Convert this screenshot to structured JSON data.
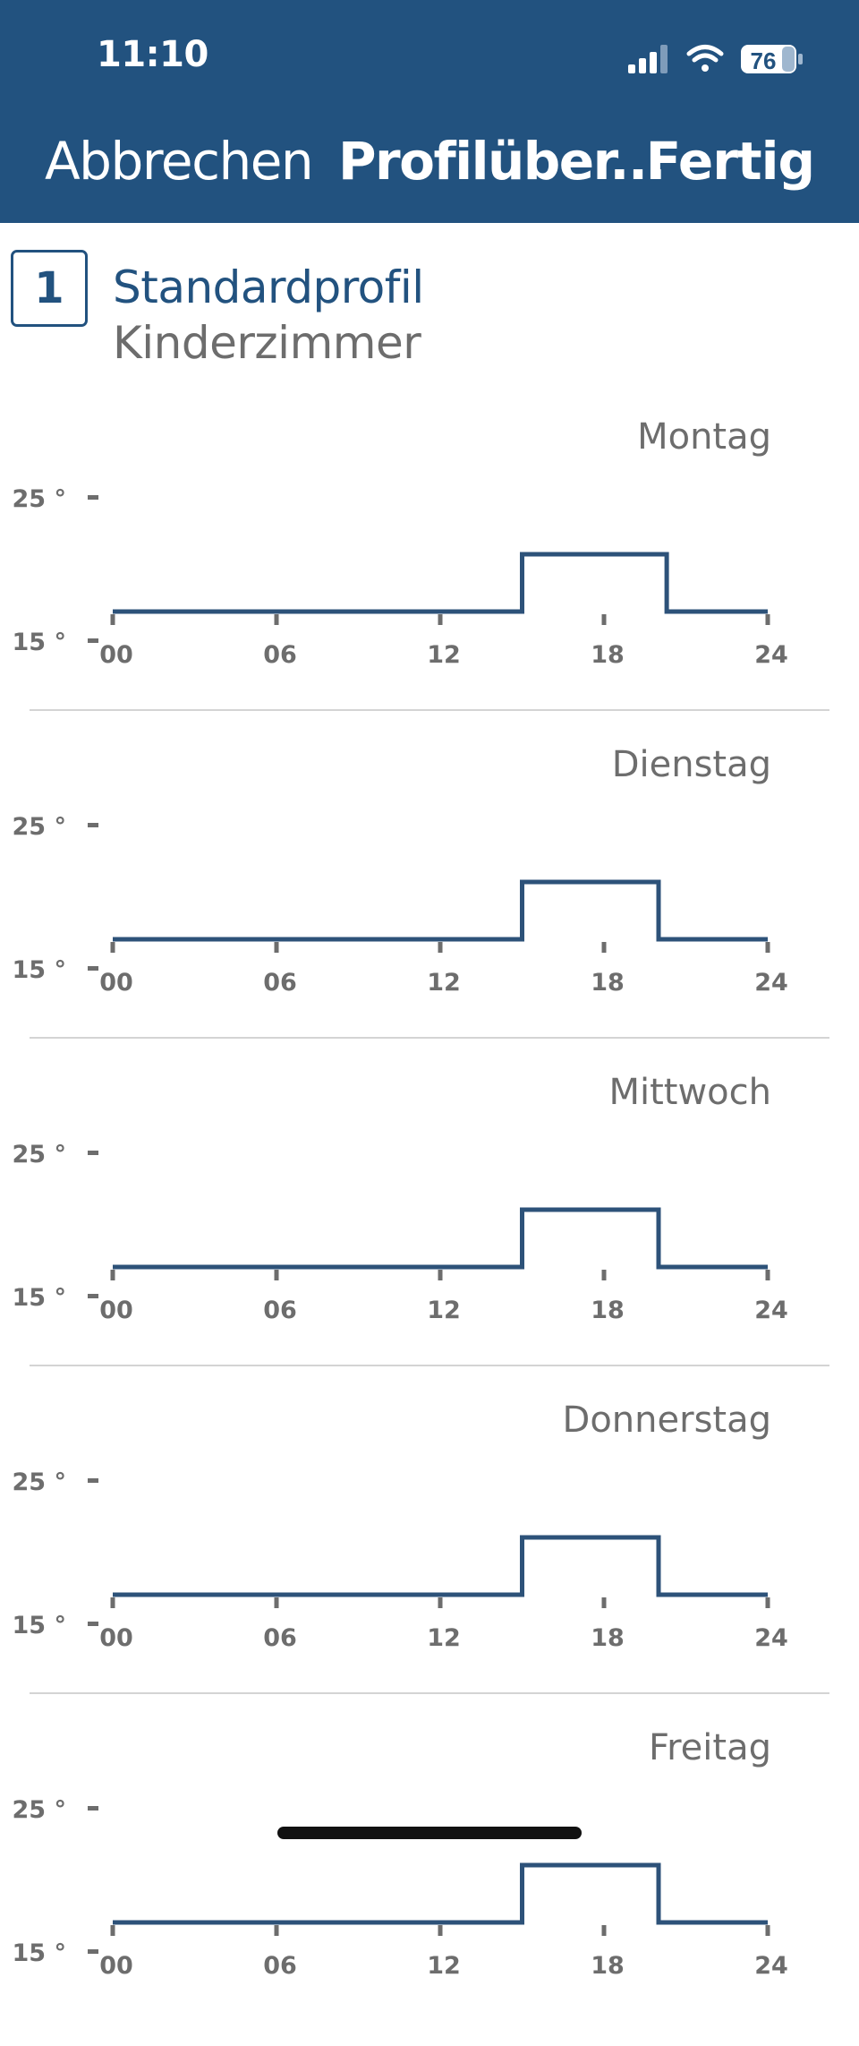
{
  "status_bar": {
    "time": "11:10",
    "battery": "76",
    "icons": [
      "signal-icon",
      "wifi-icon",
      "battery-icon"
    ]
  },
  "nav": {
    "cancel_label": "Abbrechen",
    "title": "Profilüber...",
    "done_label": "Fertig"
  },
  "profile": {
    "number": "1",
    "name": "Standardprofil",
    "room": "Kinderzimmer"
  },
  "colors": {
    "header_bg": "#22527f",
    "accent": "#22527f",
    "line": "#2d5279",
    "muted_text": "#6d6d6d",
    "divider": "#d4d4d4"
  },
  "chart_data": [
    {
      "type": "line",
      "title": "Montag",
      "y_ticks": [
        "25 °",
        "15 °"
      ],
      "x_ticks": [
        "00",
        "06",
        "12",
        "18",
        "24"
      ],
      "xlim": [
        0,
        24
      ],
      "ylim": [
        15,
        25
      ],
      "step": true,
      "x": [
        0,
        15,
        15,
        20.3,
        20.3,
        24
      ],
      "y": [
        17,
        17,
        21,
        21,
        17,
        17
      ]
    },
    {
      "type": "line",
      "title": "Dienstag",
      "y_ticks": [
        "25 °",
        "15 °"
      ],
      "x_ticks": [
        "00",
        "06",
        "12",
        "18",
        "24"
      ],
      "xlim": [
        0,
        24
      ],
      "ylim": [
        15,
        25
      ],
      "step": true,
      "x": [
        0,
        15,
        15,
        20,
        20,
        24
      ],
      "y": [
        17,
        17,
        21,
        21,
        17,
        17
      ]
    },
    {
      "type": "line",
      "title": "Mittwoch",
      "y_ticks": [
        "25 °",
        "15 °"
      ],
      "x_ticks": [
        "00",
        "06",
        "12",
        "18",
        "24"
      ],
      "xlim": [
        0,
        24
      ],
      "ylim": [
        15,
        25
      ],
      "step": true,
      "x": [
        0,
        15,
        15,
        20,
        20,
        24
      ],
      "y": [
        17,
        17,
        21,
        21,
        17,
        17
      ]
    },
    {
      "type": "line",
      "title": "Donnerstag",
      "y_ticks": [
        "25 °",
        "15 °"
      ],
      "x_ticks": [
        "00",
        "06",
        "12",
        "18",
        "24"
      ],
      "xlim": [
        0,
        24
      ],
      "ylim": [
        15,
        25
      ],
      "step": true,
      "x": [
        0,
        15,
        15,
        20,
        20,
        24
      ],
      "y": [
        17,
        17,
        21,
        21,
        17,
        17
      ]
    },
    {
      "type": "line",
      "title": "Freitag",
      "y_ticks": [
        "25 °",
        "15 °"
      ],
      "x_ticks": [
        "00",
        "06",
        "12",
        "18",
        "24"
      ],
      "xlim": [
        0,
        24
      ],
      "ylim": [
        15,
        25
      ],
      "step": true,
      "x": [
        0,
        15,
        15,
        20,
        20,
        24
      ],
      "y": [
        17,
        17,
        21,
        21,
        17,
        17
      ]
    }
  ]
}
